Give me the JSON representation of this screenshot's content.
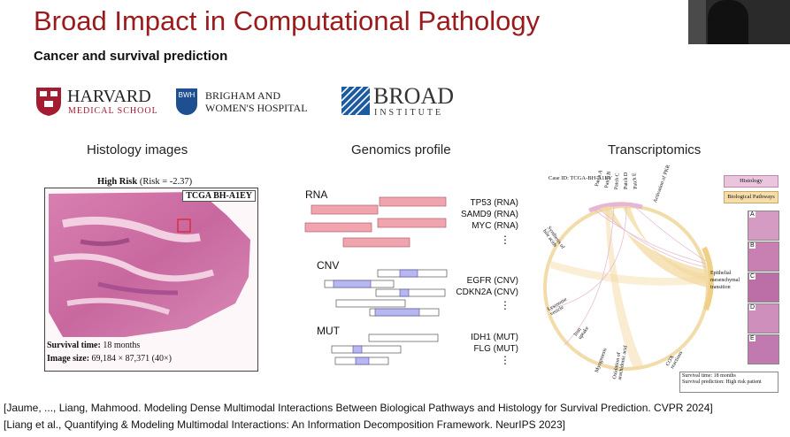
{
  "slide": {
    "title": "Broad Impact in Computational Pathology",
    "subtitle": "Cancer and survival prediction"
  },
  "logos": {
    "harvard": {
      "line1": "HARVARD",
      "line2": "MEDICAL SCHOOL"
    },
    "bwh": {
      "badge": "BWH",
      "line1": "BRIGHAM AND",
      "line2": "WOMEN'S HOSPITAL"
    },
    "broad": {
      "line1": "BROAD",
      "line2": "INSTITUTE"
    }
  },
  "histology": {
    "heading": "Histology images",
    "risk_label": "High Risk",
    "risk_value": "(Risk = -2.37)",
    "case_id": "TCGA BH-A1EY",
    "survival_label": "Survival time:",
    "survival_value": "18 months",
    "size_label": "Image size:",
    "size_value": "69,184 × 87,371 (40×)"
  },
  "genomics": {
    "heading": "Genomics profile",
    "groups": [
      {
        "label": "RNA",
        "genes": [
          "TP53 (RNA)",
          "SAMD9 (RNA)",
          "MYC (RNA)"
        ]
      },
      {
        "label": "CNV",
        "genes": [
          "EGFR (CNV)",
          "CDKN2A (CNV)"
        ]
      },
      {
        "label": "MUT",
        "genes": [
          "IDH1 (MUT)",
          "FLG (MUT)"
        ]
      }
    ],
    "more": "⋮"
  },
  "transcriptomics": {
    "heading": "Transcriptomics",
    "case_id": "Case ID: TCGA-BH-A1EY",
    "legend": [
      "Histology",
      "Biological Pathways"
    ],
    "patches": [
      "Patch A",
      "Patch B",
      "Patch C",
      "Patch D",
      "Patch E"
    ],
    "pathways": [
      "Synthesis of bile acids",
      "Activation of PKR",
      "Epithelial mesenchymal transition",
      "Lysosome vesicle",
      "Iron uptake",
      "Myogenesis",
      "Oxidation of arachidonic acid",
      "COX reactions"
    ],
    "patch_letters": [
      "A",
      "B",
      "C",
      "D",
      "E"
    ],
    "survival": "Survival time: 18 months",
    "prediction": "Survival prediction: High risk patient"
  },
  "references": [
    "[Jaume, ..., Liang, Mahmood. Modeling Dense Multimodal Interactions Between Biological Pathways and Histology for Survival Prediction. CVPR 2024]",
    "[Liang et al., Quantifying & Modeling Multimodal Interactions: An Information Decomposition Framework. NeurIPS 2023]"
  ],
  "colors": {
    "title": "#9a1b1b",
    "rna_bar": "#f0a4ad",
    "cnv_mut_bar": "#b9b7ef",
    "histology_legend": "#e9c6de",
    "pathway_legend": "#f6deaa",
    "chord": "#f3d9a2"
  }
}
